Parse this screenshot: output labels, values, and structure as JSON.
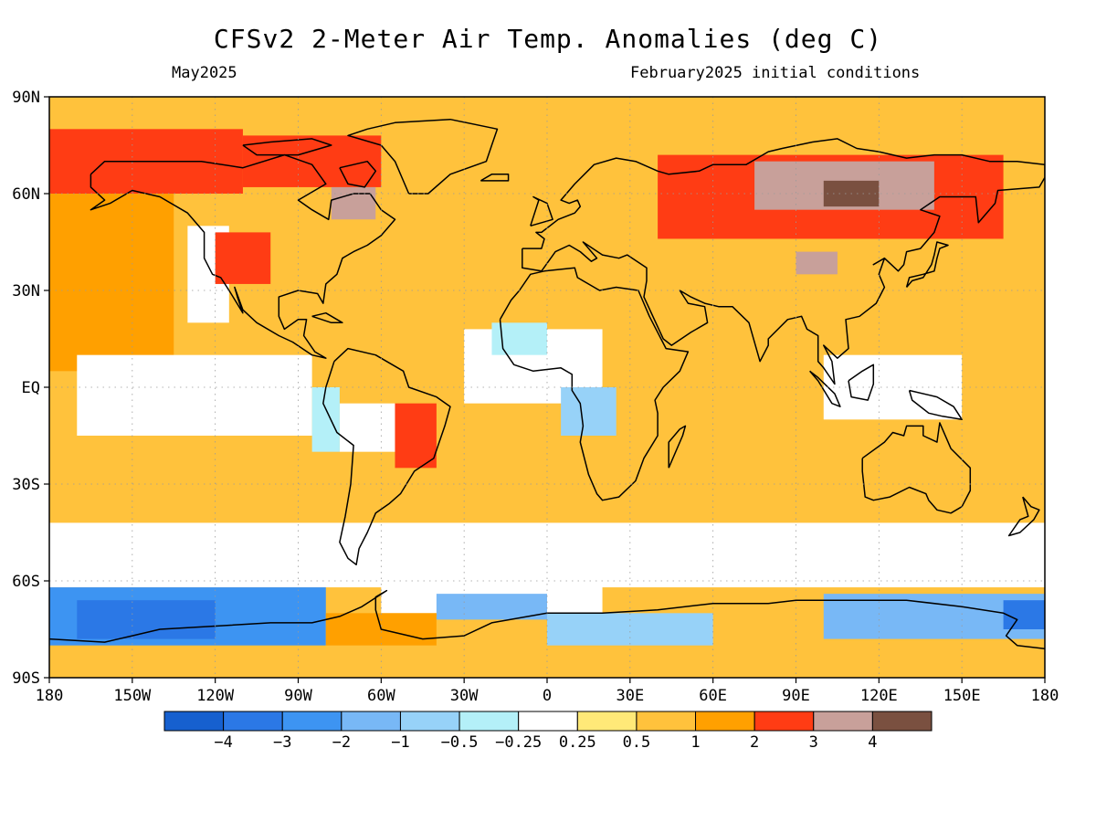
{
  "header": {
    "title": "CFSv2 2-Meter Air Temp. Anomalies (deg C)",
    "valid_month": "May2025",
    "init_conditions": "February2025 initial conditions"
  },
  "map": {
    "projection": "equirectangular",
    "lon_range": [
      -180,
      180
    ],
    "lat_range": [
      -90,
      90
    ],
    "grid": true,
    "y_ticks": [
      {
        "lat": 90,
        "label": "90N"
      },
      {
        "lat": 60,
        "label": "60N"
      },
      {
        "lat": 30,
        "label": "30N"
      },
      {
        "lat": 0,
        "label": "EQ"
      },
      {
        "lat": -30,
        "label": "30S"
      },
      {
        "lat": -60,
        "label": "60S"
      },
      {
        "lat": -90,
        "label": "90S"
      }
    ],
    "x_ticks": [
      {
        "lon": -180,
        "label": "180"
      },
      {
        "lon": -150,
        "label": "150W"
      },
      {
        "lon": -120,
        "label": "120W"
      },
      {
        "lon": -90,
        "label": "90W"
      },
      {
        "lon": -60,
        "label": "60W"
      },
      {
        "lon": -30,
        "label": "30W"
      },
      {
        "lon": 0,
        "label": "0"
      },
      {
        "lon": 30,
        "label": "30E"
      },
      {
        "lon": 60,
        "label": "60E"
      },
      {
        "lon": 90,
        "label": "90E"
      },
      {
        "lon": 120,
        "label": "120E"
      },
      {
        "lon": 150,
        "label": "150E"
      },
      {
        "lon": 180,
        "label": "180"
      }
    ]
  },
  "colorbar": {
    "colors": [
      "#1660cf",
      "#2b78e6",
      "#3d94f2",
      "#78b8f6",
      "#97d2f8",
      "#b4f0f8",
      "#ffffff",
      "#ffe978",
      "#ffc23c",
      "#ffa000",
      "#ff3c14",
      "#c8a09a",
      "#7a5040"
    ],
    "labels": [
      "-4",
      "-3",
      "-2",
      "-1",
      "-0.5",
      "-0.25",
      "0.25",
      "0.5",
      "1",
      "2",
      "3",
      "4"
    ]
  },
  "chart_data": {
    "type": "heatmap",
    "title": "CFSv2 2-Meter Air Temp. Anomalies (deg C)",
    "units": "deg C",
    "levels": [
      -4,
      -3,
      -2,
      -1,
      -0.5,
      -0.25,
      0.25,
      0.5,
      1,
      2,
      3,
      4
    ],
    "regions": [
      {
        "lon": [
          -180,
          180
        ],
        "lat": [
          -90,
          90
        ],
        "value": 0.7
      },
      {
        "lon": [
          -180,
          -135
        ],
        "lat": [
          5,
          60
        ],
        "value": 1.3
      },
      {
        "lon": [
          180,
          180
        ],
        "lat": [
          5,
          60
        ],
        "value": 1.3
      },
      {
        "lon": [
          -170,
          -85
        ],
        "lat": [
          -15,
          10
        ],
        "value": 0.1
      },
      {
        "lon": [
          -130,
          -115
        ],
        "lat": [
          20,
          50
        ],
        "value": 0.1
      },
      {
        "lon": [
          -120,
          -100
        ],
        "lat": [
          32,
          48
        ],
        "value": 2.5
      },
      {
        "lon": [
          -180,
          -110
        ],
        "lat": [
          60,
          80
        ],
        "value": 2.5
      },
      {
        "lon": [
          -110,
          -60
        ],
        "lat": [
          62,
          78
        ],
        "value": 2.5
      },
      {
        "lon": [
          -78,
          -62
        ],
        "lat": [
          52,
          62
        ],
        "value": 3.3
      },
      {
        "lon": [
          -45,
          45
        ],
        "lat": [
          70,
          82
        ],
        "value": 0.9
      },
      {
        "lon": [
          40,
          165
        ],
        "lat": [
          46,
          72
        ],
        "value": 2.5
      },
      {
        "lon": [
          75,
          140
        ],
        "lat": [
          55,
          70
        ],
        "value": 3.3
      },
      {
        "lon": [
          100,
          120
        ],
        "lat": [
          56,
          64
        ],
        "value": 4.3
      },
      {
        "lon": [
          90,
          105
        ],
        "lat": [
          35,
          42
        ],
        "value": 3.2
      },
      {
        "lon": [
          -30,
          20
        ],
        "lat": [
          -5,
          18
        ],
        "value": 0.1
      },
      {
        "lon": [
          5,
          25
        ],
        "lat": [
          -15,
          0
        ],
        "value": -0.7
      },
      {
        "lon": [
          -20,
          0
        ],
        "lat": [
          10,
          20
        ],
        "value": -0.3
      },
      {
        "lon": [
          -75,
          -55
        ],
        "lat": [
          -20,
          -5
        ],
        "value": 0.1
      },
      {
        "lon": [
          -85,
          -75
        ],
        "lat": [
          -20,
          0
        ],
        "value": -0.4
      },
      {
        "lon": [
          -55,
          -40
        ],
        "lat": [
          -25,
          -5
        ],
        "value": 2.4
      },
      {
        "lon": [
          100,
          150
        ],
        "lat": [
          -10,
          10
        ],
        "value": 0.1
      },
      {
        "lon": [
          110,
          150
        ],
        "lat": [
          -30,
          -15
        ],
        "value": 0.7
      },
      {
        "lon": [
          -180,
          180
        ],
        "lat": [
          -62,
          -42
        ],
        "value": 0.2
      },
      {
        "lon": [
          -60,
          20
        ],
        "lat": [
          -70,
          -50
        ],
        "value": 0.1
      },
      {
        "lon": [
          -180,
          -80
        ],
        "lat": [
          -80,
          -62
        ],
        "value": -2.5
      },
      {
        "lon": [
          -170,
          -120
        ],
        "lat": [
          -78,
          -66
        ],
        "value": -3.3
      },
      {
        "lon": [
          -40,
          0
        ],
        "lat": [
          -72,
          -64
        ],
        "value": -1.2
      },
      {
        "lon": [
          0,
          60
        ],
        "lat": [
          -80,
          -70
        ],
        "value": -0.8
      },
      {
        "lon": [
          100,
          180
        ],
        "lat": [
          -78,
          -64
        ],
        "value": -1.5
      },
      {
        "lon": [
          165,
          180
        ],
        "lat": [
          -75,
          -66
        ],
        "value": -3.3
      },
      {
        "lon": [
          -80,
          -40
        ],
        "lat": [
          -80,
          -70
        ],
        "value": 1.3
      },
      {
        "lon": [
          -180,
          180
        ],
        "lat": [
          -90,
          -82
        ],
        "value": 0.5
      }
    ]
  }
}
